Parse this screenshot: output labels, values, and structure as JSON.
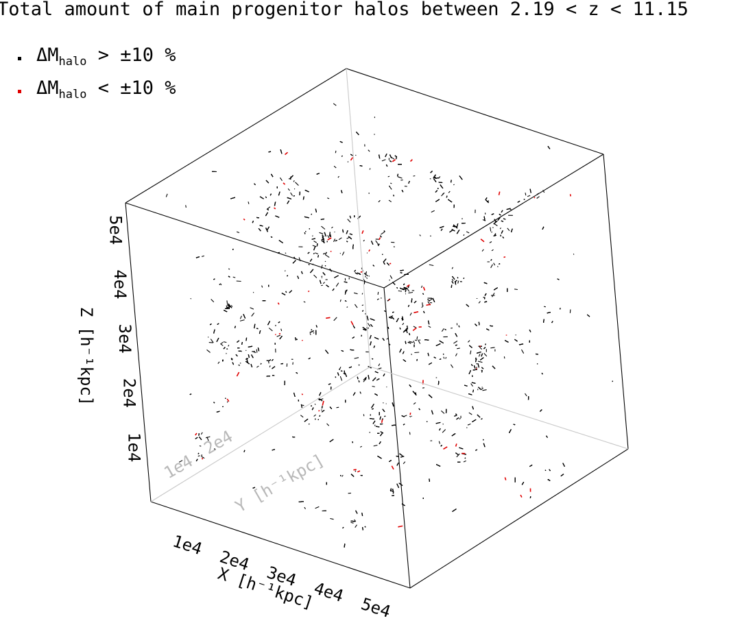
{
  "chart_data": {
    "type": "scatter",
    "projection": "3d",
    "title": "Total amount of main progenitor halos between 2.19 < z < 11.15",
    "legend_placement": "top-left",
    "series": [
      {
        "name": "ΔM_halo > ±10 %",
        "label_main": "ΔM",
        "label_sub": "halo",
        "label_rest": " > ±10 %",
        "color": "#000000"
      },
      {
        "name": "ΔM_halo < ±10 %",
        "label_main": "ΔM",
        "label_sub": "halo",
        "label_rest": " < ±10 %",
        "color": "#e00000"
      }
    ],
    "axes": {
      "x": {
        "label": "X [h⁻¹kpc]",
        "ticks": [
          "1e4",
          "2e4",
          "3e4",
          "4e4",
          "5e4"
        ],
        "tick_values": [
          10000,
          20000,
          30000,
          40000,
          50000
        ],
        "range": [
          0,
          55000
        ]
      },
      "y": {
        "label": "Y [h⁻¹kpc]",
        "ticks": [
          "1e4",
          "2e4"
        ],
        "tick_values": [
          10000,
          20000
        ],
        "range": [
          0,
          55000
        ]
      },
      "z": {
        "label": "Z [h⁻¹kpc]",
        "ticks": [
          "1e4",
          "2e4",
          "3e4",
          "4e4",
          "5e4"
        ],
        "tick_values": [
          10000,
          20000,
          30000,
          40000,
          50000
        ],
        "range": [
          0,
          55000
        ]
      }
    },
    "grid": false
  }
}
